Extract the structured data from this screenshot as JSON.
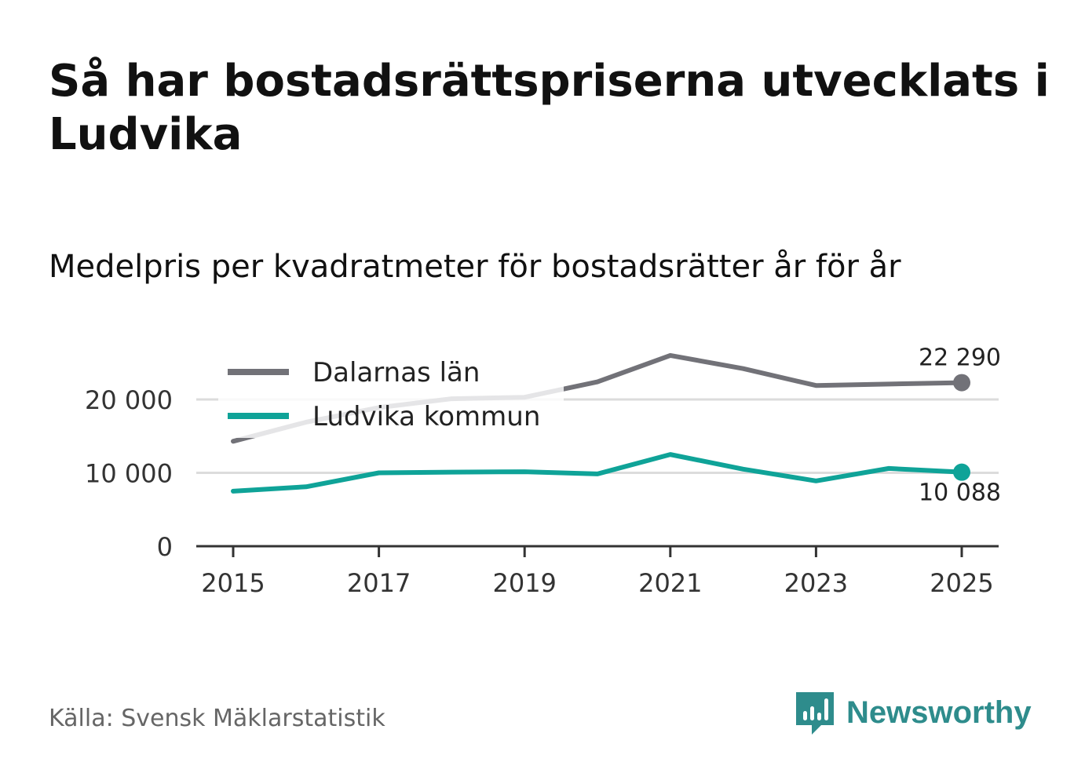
{
  "title": "Så har bostadsrättspriserna utvecklats i Ludvika",
  "subtitle": "Medelpris per kvadratmeter för bostadsrätter år för år",
  "source": "Källa: Svensk Mäklarstatistik",
  "brand": {
    "name": "Newsworthy",
    "icon": "newsworthy-logo-icon",
    "color": "#2e8c8c"
  },
  "chart_data": {
    "type": "line",
    "x": [
      2015,
      2016,
      2017,
      2018,
      2019,
      2020,
      2021,
      2022,
      2023,
      2024,
      2025
    ],
    "x_ticks": [
      "2015",
      "2017",
      "2019",
      "2021",
      "2023",
      "2025"
    ],
    "y_ticks": [
      {
        "value": 0,
        "label": "0"
      },
      {
        "value": 10000,
        "label": "10 000"
      },
      {
        "value": 20000,
        "label": "20 000"
      }
    ],
    "ylim": [
      0,
      29000
    ],
    "grid": true,
    "legend_position": "top-left",
    "series": [
      {
        "name": "Dalarnas län",
        "color": "#727278",
        "values": [
          14300,
          16900,
          18900,
          20100,
          20300,
          22400,
          26000,
          24200,
          21900,
          22100,
          22290
        ],
        "end_label": "22 290"
      },
      {
        "name": "Ludvika kommun",
        "color": "#0fa398",
        "values": [
          7500,
          8100,
          10000,
          10100,
          10150,
          9850,
          12500,
          10500,
          8900,
          10600,
          10088
        ],
        "end_label": "10 088"
      }
    ]
  }
}
